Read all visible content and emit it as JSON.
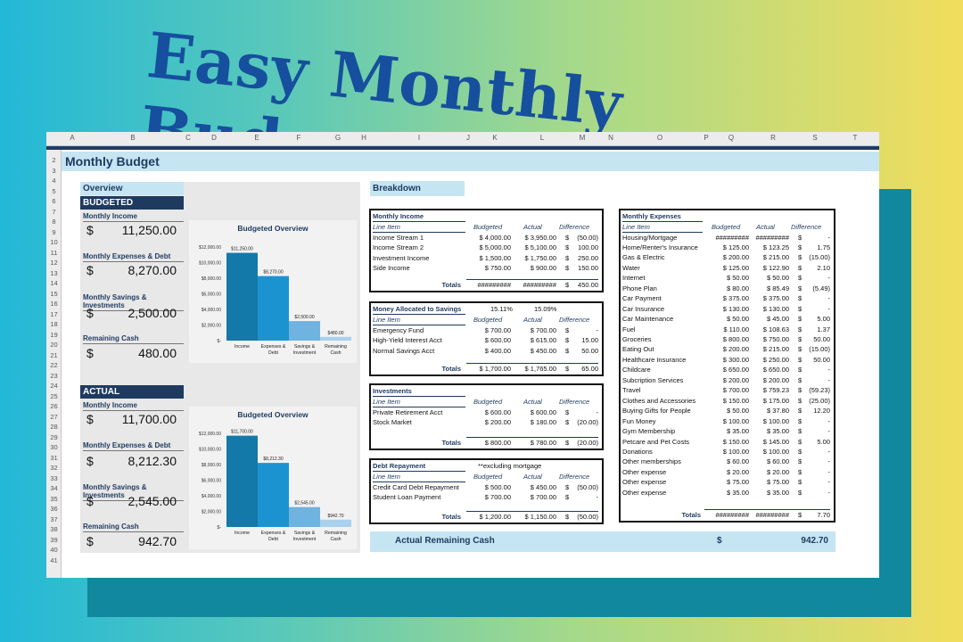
{
  "headline": "Easy Monthly Budget!",
  "sheet": {
    "columns": [
      "A",
      "B",
      "C",
      "D",
      "E",
      "F",
      "G",
      "H",
      "I",
      "J",
      "K",
      "L",
      "M",
      "N",
      "O",
      "P",
      "Q",
      "R",
      "S",
      "T"
    ],
    "rows": [
      "2",
      "3",
      "4",
      "5",
      "6",
      "7",
      "8",
      "9",
      "10",
      "11",
      "12",
      "13",
      "14",
      "15",
      "16",
      "17",
      "18",
      "19",
      "20",
      "21",
      "22",
      "23",
      "24",
      "25",
      "26",
      "27",
      "28",
      "29",
      "30",
      "31",
      "32",
      "33",
      "34",
      "35",
      "36",
      "37",
      "38",
      "39",
      "40",
      "41"
    ],
    "title": "Monthly Budget"
  },
  "overview": {
    "header": "Overview",
    "budgeted": {
      "band": "BUDGETED",
      "metrics": [
        {
          "label": "Monthly Income",
          "currency": "$",
          "value": "11,250.00"
        },
        {
          "label": "Monthly Expenses & Debt",
          "currency": "$",
          "value": "8,270.00"
        },
        {
          "label": "Monthly Savings & Investments",
          "currency": "$",
          "value": "2,500.00"
        },
        {
          "label": "Remaining Cash",
          "currency": "$",
          "value": "480.00"
        }
      ]
    },
    "actual": {
      "band": "ACTUAL",
      "metrics": [
        {
          "label": "Monthly Income",
          "currency": "$",
          "value": "11,700.00"
        },
        {
          "label": "Monthly Expenses & Debt",
          "currency": "$",
          "value": "8,212.30"
        },
        {
          "label": "Monthly Savings & Investments",
          "currency": "$",
          "value": "2,545.00"
        },
        {
          "label": "Remaining Cash",
          "currency": "$",
          "value": "942.70"
        }
      ]
    }
  },
  "chart_data": [
    {
      "type": "bar",
      "title": "Budgeted Overview",
      "categories": [
        "Income",
        "Expenses & Debt",
        "Savings & Investment",
        "Remaining Cash"
      ],
      "values": [
        11250,
        8270,
        2500,
        480
      ],
      "data_labels": [
        "$11,250.00",
        "$8,270.00",
        "$2,500.00",
        "$480.00"
      ],
      "ylim": [
        0,
        12000
      ],
      "yticks": [
        "$-",
        "$2,000.00",
        "$4,000.00",
        "$6,000.00",
        "$8,000.00",
        "$10,000.00",
        "$12,000.00"
      ],
      "colors": [
        "#1379a8",
        "#1b93d1",
        "#6fb3e0",
        "#a9d1ee"
      ]
    },
    {
      "type": "bar",
      "title": "Budgeted Overview",
      "categories": [
        "Income",
        "Expenses & Debt",
        "Savings & Investment",
        "Remaining Cash"
      ],
      "values": [
        11700,
        8212.3,
        2545,
        942.7
      ],
      "data_labels": [
        "$11,700.00",
        "$8,212.30",
        "$2,545.00",
        "$942.70"
      ],
      "ylim": [
        0,
        12000
      ],
      "yticks": [
        "$-",
        "$2,000.00",
        "$4,000.00",
        "$6,000.00",
        "$8,000.00",
        "$10,000.00",
        "$12,000.00"
      ],
      "colors": [
        "#1379a8",
        "#1b93d1",
        "#6fb3e0",
        "#a9d1ee"
      ]
    }
  ],
  "breakdown": {
    "header": "Breakdown",
    "income": {
      "title": "Monthly Income",
      "cols": [
        "Line Item",
        "Budgeted",
        "Actual",
        "Difference"
      ],
      "rows": [
        [
          "Income Stream 1",
          "$ 4,000.00",
          "$ 3,950.00",
          "$",
          "(50.00)"
        ],
        [
          "Income Stream 2",
          "$ 5,000.00",
          "$ 5,100.00",
          "$",
          "100.00"
        ],
        [
          "Investment Income",
          "$ 1,500.00",
          "$ 1,750.00",
          "$",
          "250.00"
        ],
        [
          "Side Income",
          "$ 750.00",
          "$ 900.00",
          "$",
          "150.00"
        ]
      ],
      "totals": [
        "Totals",
        "#########",
        "#########",
        "$",
        "450.00"
      ]
    },
    "savings": {
      "title": "Money Allocated to Savings",
      "pct_budgeted": "15.11%",
      "pct_actual": "15.09%",
      "cols": [
        "Line Item",
        "Budgeted",
        "Actual",
        "Difference"
      ],
      "rows": [
        [
          "Emergency Fund",
          "$ 700.00",
          "$ 700.00",
          "$",
          "-"
        ],
        [
          "High-Yield Interest Acct",
          "$ 600.00",
          "$ 615.00",
          "$",
          "15.00"
        ],
        [
          "Normal Savings Acct",
          "$ 400.00",
          "$ 450.00",
          "$",
          "50.00"
        ]
      ],
      "totals": [
        "Totals",
        "$ 1,700.00",
        "$ 1,765.00",
        "$",
        "65.00"
      ]
    },
    "investments": {
      "title": "Investments",
      "cols": [
        "Line Item",
        "Budgeted",
        "Actual",
        "Difference"
      ],
      "rows": [
        [
          "Private Retirement Acct",
          "$ 600.00",
          "$ 600.00",
          "$",
          "-"
        ],
        [
          "Stock Market",
          "$ 200.00",
          "$ 180.00",
          "$",
          "(20.00)"
        ]
      ],
      "totals": [
        "Totals",
        "$ 800.00",
        "$ 780.00",
        "$",
        "(20.00)"
      ]
    },
    "debt": {
      "title": "Debt Repayment",
      "note": "**excluding mortgage",
      "cols": [
        "Line Item",
        "Budgeted",
        "Actual",
        "Difference"
      ],
      "rows": [
        [
          "Credit Card Debt Repayment",
          "$ 500.00",
          "$ 450.00",
          "$",
          "(50.00)"
        ],
        [
          "Student Loan Payment",
          "$ 700.00",
          "$ 700.00",
          "$",
          "-"
        ]
      ],
      "totals": [
        "Totals",
        "$ 1,200.00",
        "$ 1,150.00",
        "$",
        "(50.00)"
      ]
    },
    "expenses": {
      "title": "Monthly Expenses",
      "cols": [
        "Line Item",
        "Budgeted",
        "Actual",
        "Difference"
      ],
      "rows": [
        [
          "Housing/Mortgage",
          "#########",
          "#########",
          "$",
          "-"
        ],
        [
          "Home/Renter's Insurance",
          "$ 125.00",
          "$ 123.25",
          "$",
          "1.75"
        ],
        [
          "Gas & Electric",
          "$ 200.00",
          "$ 215.00",
          "$",
          "(15.00)"
        ],
        [
          "Water",
          "$ 125.00",
          "$ 122.90",
          "$",
          "2.10"
        ],
        [
          "Internet",
          "$ 50.00",
          "$ 50.00",
          "$",
          "-"
        ],
        [
          "Phone Plan",
          "$ 80.00",
          "$ 85.49",
          "$",
          "(5.49)"
        ],
        [
          "Car Payment",
          "$ 375.00",
          "$ 375.00",
          "$",
          "-"
        ],
        [
          "Car Insurance",
          "$ 130.00",
          "$ 130.00",
          "$",
          "-"
        ],
        [
          "Car Maintenance",
          "$ 50.00",
          "$ 45.00",
          "$",
          "5.00"
        ],
        [
          "Fuel",
          "$ 110.00",
          "$ 108.63",
          "$",
          "1.37"
        ],
        [
          "Groceries",
          "$ 800.00",
          "$ 750.00",
          "$",
          "50.00"
        ],
        [
          "Eating Out",
          "$ 200.00",
          "$ 215.00",
          "$",
          "(15.00)"
        ],
        [
          "Healthcare Insurance",
          "$ 300.00",
          "$ 250.00",
          "$",
          "50.00"
        ],
        [
          "Childcare",
          "$ 650.00",
          "$ 650.00",
          "$",
          "-"
        ],
        [
          "Subcription Services",
          "$ 200.00",
          "$ 200.00",
          "$",
          "-"
        ],
        [
          "Travel",
          "$ 700.00",
          "$ 759.23",
          "$",
          "(59.23)"
        ],
        [
          "Clothes and Accessories",
          "$ 150.00",
          "$ 175.00",
          "$",
          "(25.00)"
        ],
        [
          "Buying Gifts for People",
          "$ 50.00",
          "$ 37.80",
          "$",
          "12.20"
        ],
        [
          "Fun Money",
          "$ 100.00",
          "$ 100.00",
          "$",
          "-"
        ],
        [
          "Gym Membership",
          "$ 35.00",
          "$ 35.00",
          "$",
          "-"
        ],
        [
          "Petcare and Pet Costs",
          "$ 150.00",
          "$ 145.00",
          "$",
          "5.00"
        ],
        [
          "Donations",
          "$ 100.00",
          "$ 100.00",
          "$",
          "-"
        ],
        [
          "Other memberships",
          "$ 60.00",
          "$ 60.00",
          "$",
          "-"
        ],
        [
          "Other expense",
          "$ 20.00",
          "$ 20.00",
          "$",
          "-"
        ],
        [
          "Other expense",
          "$ 75.00",
          "$ 75.00",
          "$",
          "-"
        ],
        [
          "Other expense",
          "$ 35.00",
          "$ 35.00",
          "$",
          "-"
        ]
      ],
      "totals": [
        "Totals",
        "#########",
        "#########",
        "$",
        "7.70"
      ]
    },
    "remaining": {
      "label": "Actual Remaining Cash",
      "currency": "$",
      "value": "942.70"
    }
  }
}
